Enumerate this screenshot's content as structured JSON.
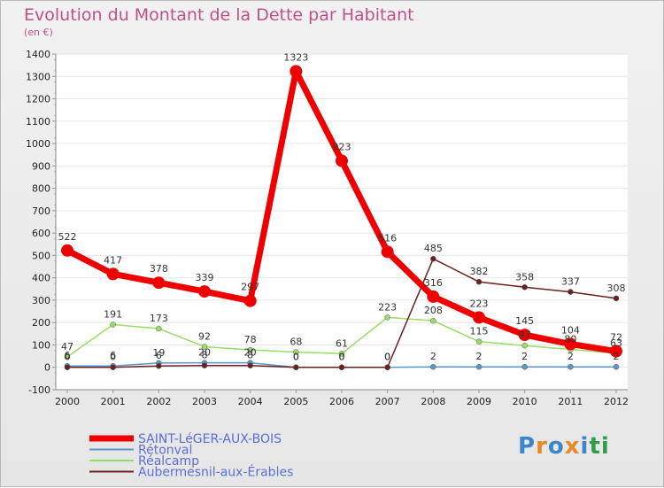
{
  "chart_data": {
    "type": "line",
    "title": "Evolution du Montant de la Dette par Habitant",
    "subtitle": "(en €)",
    "xlabel": "",
    "ylabel": "",
    "ylim": [
      -100,
      1400
    ],
    "y_ticks": [
      -100,
      0,
      100,
      200,
      300,
      400,
      500,
      600,
      700,
      800,
      900,
      1000,
      1100,
      1200,
      1300,
      1400
    ],
    "categories": [
      "2000",
      "2001",
      "2002",
      "2003",
      "2004",
      "2005",
      "2006",
      "2007",
      "2008",
      "2009",
      "2010",
      "2011",
      "2012"
    ],
    "series": [
      {
        "name": "SAINT-LéGER-AUX-BOIS",
        "color": "#ee0000",
        "width": 7,
        "marker": 7,
        "values": [
          522,
          417,
          378,
          339,
          297,
          1323,
          923,
          516,
          316,
          223,
          145,
          104,
          72
        ]
      },
      {
        "name": "Rétonval",
        "color": "#5b97c8",
        "width": 1.5,
        "marker": 3,
        "values": [
          6,
          6,
          19,
          20,
          20,
          0,
          0,
          0,
          2,
          2,
          2,
          2,
          2
        ]
      },
      {
        "name": "Réalcamp",
        "color": "#99dd66",
        "width": 1.5,
        "marker": 3,
        "values": [
          47,
          191,
          173,
          92,
          78,
          68,
          61,
          223,
          208,
          115,
          97,
          80,
          63
        ]
      },
      {
        "name": "Aubermesnil-aux-Érables",
        "color": "#6b2020",
        "width": 1.5,
        "marker": 3,
        "values": [
          0,
          0,
          6,
          8,
          8,
          0,
          0,
          0,
          485,
          382,
          358,
          337,
          308
        ]
      }
    ]
  },
  "logo": {
    "text": "Proxiti",
    "colors": [
      "#3a86c8",
      "#e98a25",
      "#3a86c8",
      "#e98a25",
      "#3a86c8",
      "#2f9d4b",
      "#2f9d4b"
    ]
  }
}
